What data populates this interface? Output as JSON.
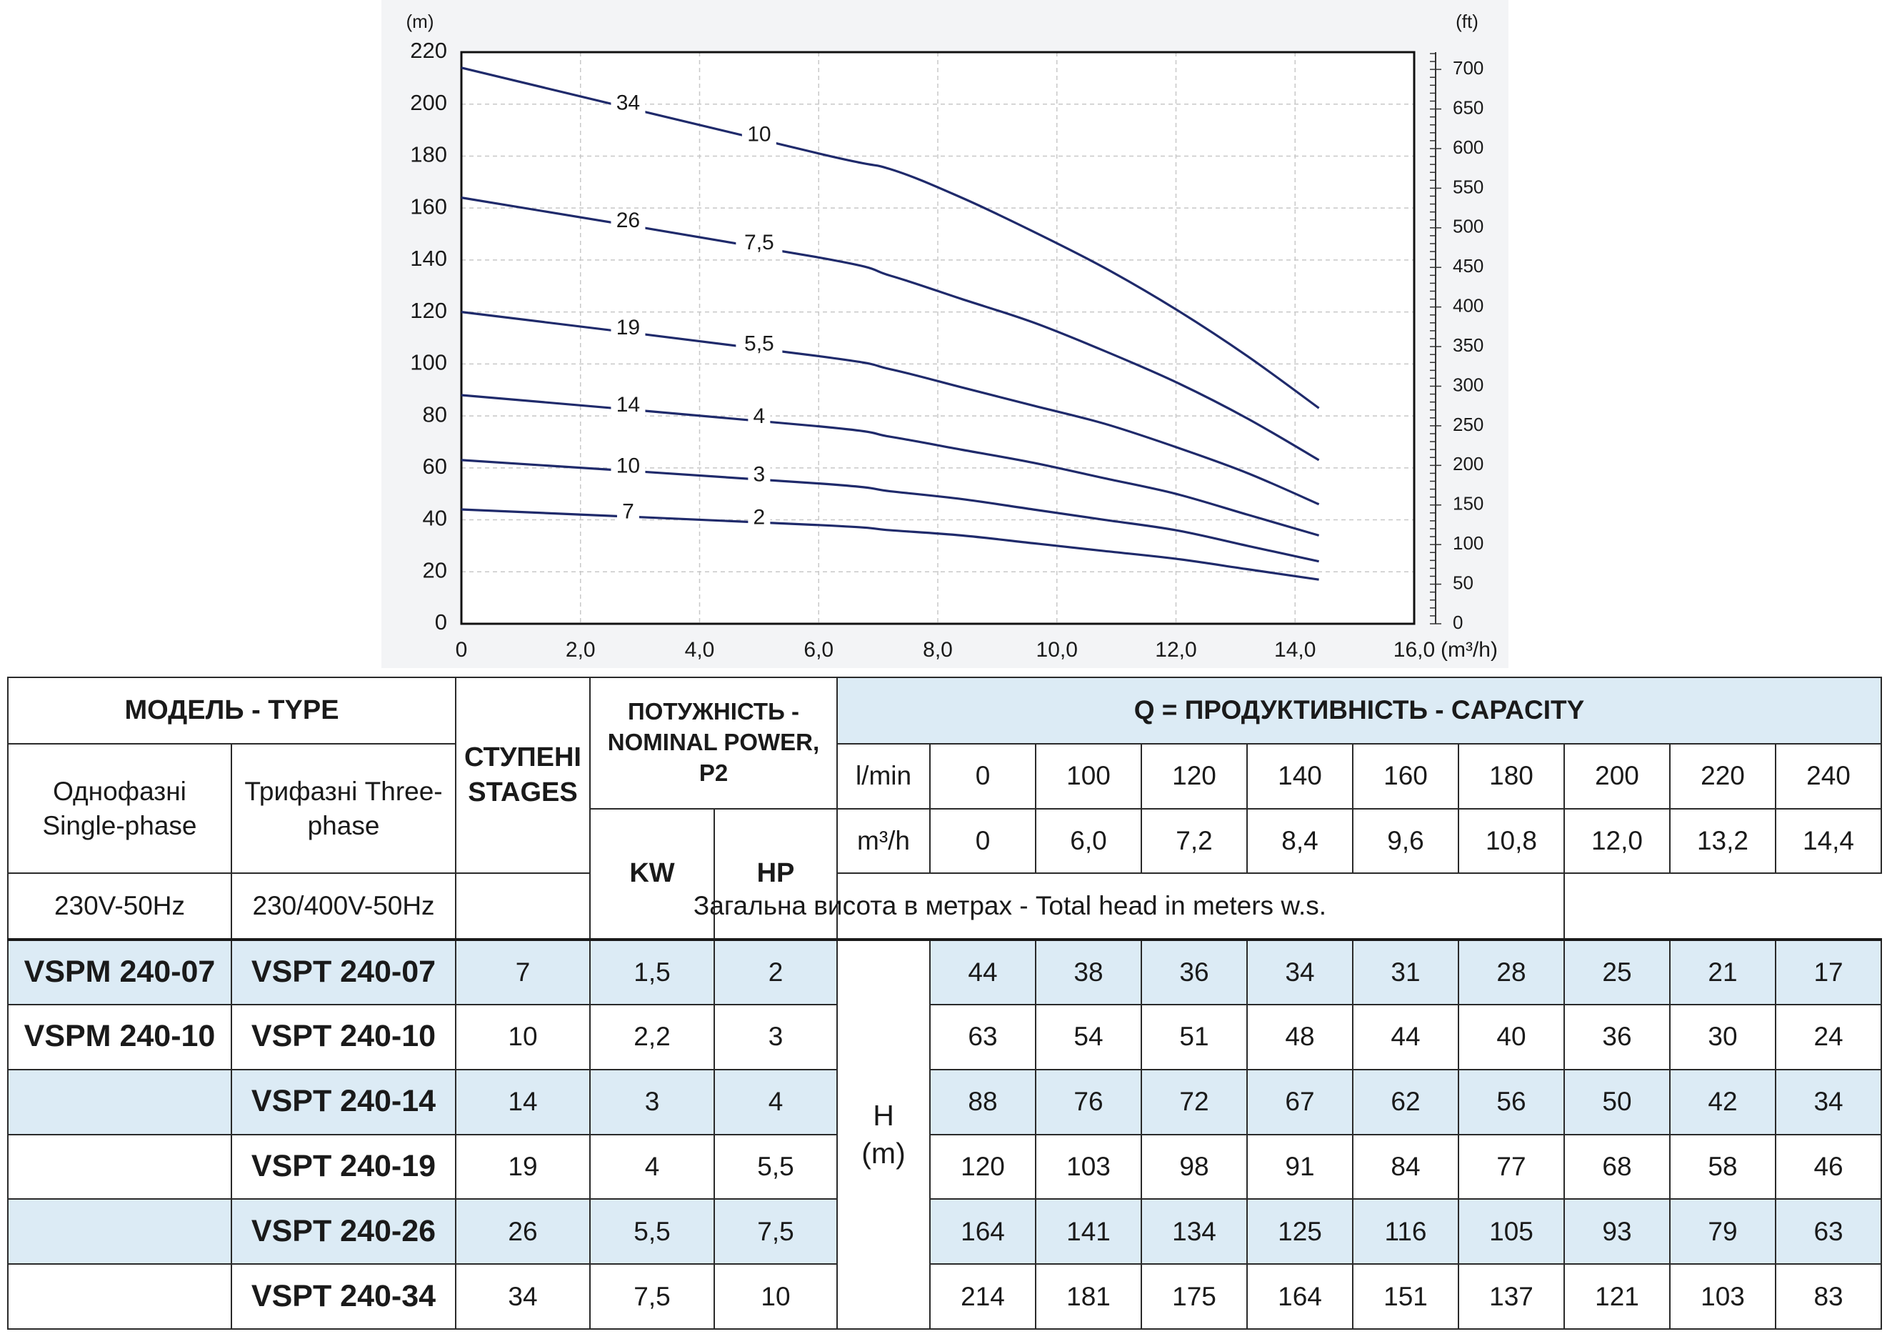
{
  "chart_data": {
    "type": "line",
    "y_unit_left": "(m)",
    "y_unit_right": "(ft)",
    "x_unit": "(m³/h)",
    "xlim": [
      0,
      16
    ],
    "ylim": [
      0,
      220
    ],
    "x_ticks": [
      "0",
      "2,0",
      "4,0",
      "6,0",
      "8,0",
      "10,0",
      "12,0",
      "14,0",
      "16,0"
    ],
    "y_ticks": [
      "0",
      "20",
      "40",
      "60",
      "80",
      "100",
      "120",
      "140",
      "160",
      "180",
      "200",
      "220"
    ],
    "y_ticks_ft": [
      "0",
      "50",
      "100",
      "150",
      "200",
      "250",
      "300",
      "350",
      "400",
      "450",
      "500",
      "550",
      "600",
      "650",
      "700"
    ],
    "x": [
      0,
      6.0,
      7.2,
      8.4,
      9.6,
      10.8,
      12.0,
      13.2,
      14.4
    ],
    "series": [
      {
        "stages": "34",
        "power": "10",
        "values": [
          214,
          181,
          175,
          164,
          151,
          137,
          121,
          103,
          83
        ]
      },
      {
        "stages": "26",
        "power": "7,5",
        "values": [
          164,
          141,
          134,
          125,
          116,
          105,
          93,
          79,
          63
        ]
      },
      {
        "stages": "19",
        "power": "5,5",
        "values": [
          120,
          103,
          98,
          91,
          84,
          77,
          68,
          58,
          46
        ]
      },
      {
        "stages": "14",
        "power": "4",
        "values": [
          88,
          76,
          72,
          67,
          62,
          56,
          50,
          42,
          34
        ]
      },
      {
        "stages": "10",
        "power": "3",
        "values": [
          63,
          54,
          51,
          48,
          44,
          40,
          36,
          30,
          24
        ]
      },
      {
        "stages": "7",
        "power": "2",
        "values": [
          44,
          38,
          36,
          34,
          31,
          28,
          25,
          21,
          17
        ]
      }
    ],
    "grid": true,
    "line_color": "#1f2a6b"
  },
  "table": {
    "model_type": "МОДЕЛЬ - TYPE",
    "single_phase": "Однофазні Single-phase",
    "three_phase": "Трифазні Three-phase",
    "single_voltage": "230V-50Hz",
    "three_voltage": "230/400V-50Hz",
    "stages_hdr": "СТУПЕНІ STAGES",
    "power_hdr": "ПОТУЖНІСТЬ - NOMINAL POWER, P2",
    "kw": "KW",
    "hp": "HP",
    "capacity_hdr": "Q = ПРОДУКТИВНІСТЬ - CAPACITY",
    "lmin_label": "l/min",
    "m3h_label": "m³/h",
    "lmin": [
      "0",
      "100",
      "120",
      "140",
      "160",
      "180",
      "200",
      "220",
      "240"
    ],
    "m3h": [
      "0",
      "6,0",
      "7,2",
      "8,4",
      "9,6",
      "10,8",
      "12,0",
      "13,2",
      "14,4"
    ],
    "total_head": "Загальна висота в метрах - Total head in meters w.s.",
    "h_label": "H",
    "h_unit": "(m)",
    "rows": [
      {
        "single": "VSPM 240-07",
        "three": "VSPT 240-07",
        "stages": "7",
        "kw": "1,5",
        "hp": "2",
        "heads": [
          "44",
          "38",
          "36",
          "34",
          "31",
          "28",
          "25",
          "21",
          "17"
        ]
      },
      {
        "single": "VSPM 240-10",
        "three": "VSPT 240-10",
        "stages": "10",
        "kw": "2,2",
        "hp": "3",
        "heads": [
          "63",
          "54",
          "51",
          "48",
          "44",
          "40",
          "36",
          "30",
          "24"
        ]
      },
      {
        "single": "",
        "three": "VSPT 240-14",
        "stages": "14",
        "kw": "3",
        "hp": "4",
        "heads": [
          "88",
          "76",
          "72",
          "67",
          "62",
          "56",
          "50",
          "42",
          "34"
        ]
      },
      {
        "single": "",
        "three": "VSPT 240-19",
        "stages": "19",
        "kw": "4",
        "hp": "5,5",
        "heads": [
          "120",
          "103",
          "98",
          "91",
          "84",
          "77",
          "68",
          "58",
          "46"
        ]
      },
      {
        "single": "",
        "three": "VSPT 240-26",
        "stages": "26",
        "kw": "5,5",
        "hp": "7,5",
        "heads": [
          "164",
          "141",
          "134",
          "125",
          "116",
          "105",
          "93",
          "79",
          "63"
        ]
      },
      {
        "single": "",
        "three": "VSPT 240-34",
        "stages": "34",
        "kw": "7,5",
        "hp": "10",
        "heads": [
          "214",
          "181",
          "175",
          "164",
          "151",
          "137",
          "121",
          "103",
          "83"
        ]
      }
    ]
  }
}
